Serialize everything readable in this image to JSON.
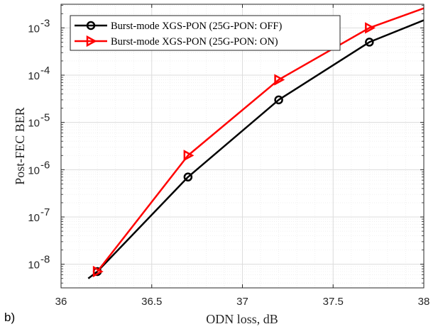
{
  "panel_label": "b)",
  "chart_data": {
    "type": "line",
    "title": "",
    "xlabel": "ODN loss, dB",
    "ylabel": "Post-FEC BER",
    "xlim": [
      36,
      38
    ],
    "ylim_log10": [
      -8.5,
      -2.5
    ],
    "yscale": "log",
    "grid": true,
    "minor_grid": true,
    "legend_position": "top-left",
    "x_ticks": [
      {
        "value": 36,
        "label": "36"
      },
      {
        "value": 36.5,
        "label": "36.5"
      },
      {
        "value": 37,
        "label": "37"
      },
      {
        "value": 37.5,
        "label": "37.5"
      },
      {
        "value": 38,
        "label": "38"
      }
    ],
    "y_ticks": [
      {
        "exp": -8,
        "base": "10",
        "power": "-8"
      },
      {
        "exp": -7,
        "base": "10",
        "power": "-7"
      },
      {
        "exp": -6,
        "base": "10",
        "power": "-6"
      },
      {
        "exp": -5,
        "base": "10",
        "power": "-5"
      },
      {
        "exp": -4,
        "base": "10",
        "power": "-4"
      },
      {
        "exp": -3,
        "base": "10",
        "power": "-3"
      }
    ],
    "series": [
      {
        "name": "Burst-mode XGS-PON (25G-PON: OFF)",
        "color": "#000000",
        "marker": "circle",
        "points": [
          [
            36.15,
            5e-09
          ],
          [
            36.2,
            7e-09
          ],
          [
            36.7,
            7e-07
          ],
          [
            37.2,
            3e-05
          ],
          [
            37.7,
            0.0005
          ],
          [
            38.0,
            0.00145
          ]
        ],
        "marker_points": [
          [
            36.2,
            7e-09
          ],
          [
            36.7,
            7e-07
          ],
          [
            37.2,
            3e-05
          ],
          [
            37.7,
            0.0005
          ]
        ]
      },
      {
        "name": "Burst-mode XGS-PON (25G-PON: ON)",
        "color": "#ff0000",
        "marker": "triangle-right",
        "points": [
          [
            36.2,
            7e-09
          ],
          [
            36.7,
            2e-06
          ],
          [
            37.2,
            8e-05
          ],
          [
            37.7,
            0.001
          ],
          [
            38.0,
            0.0026
          ]
        ],
        "marker_points": [
          [
            36.2,
            7e-09
          ],
          [
            36.7,
            2e-06
          ],
          [
            37.2,
            8e-05
          ],
          [
            37.7,
            0.001
          ]
        ]
      }
    ]
  }
}
